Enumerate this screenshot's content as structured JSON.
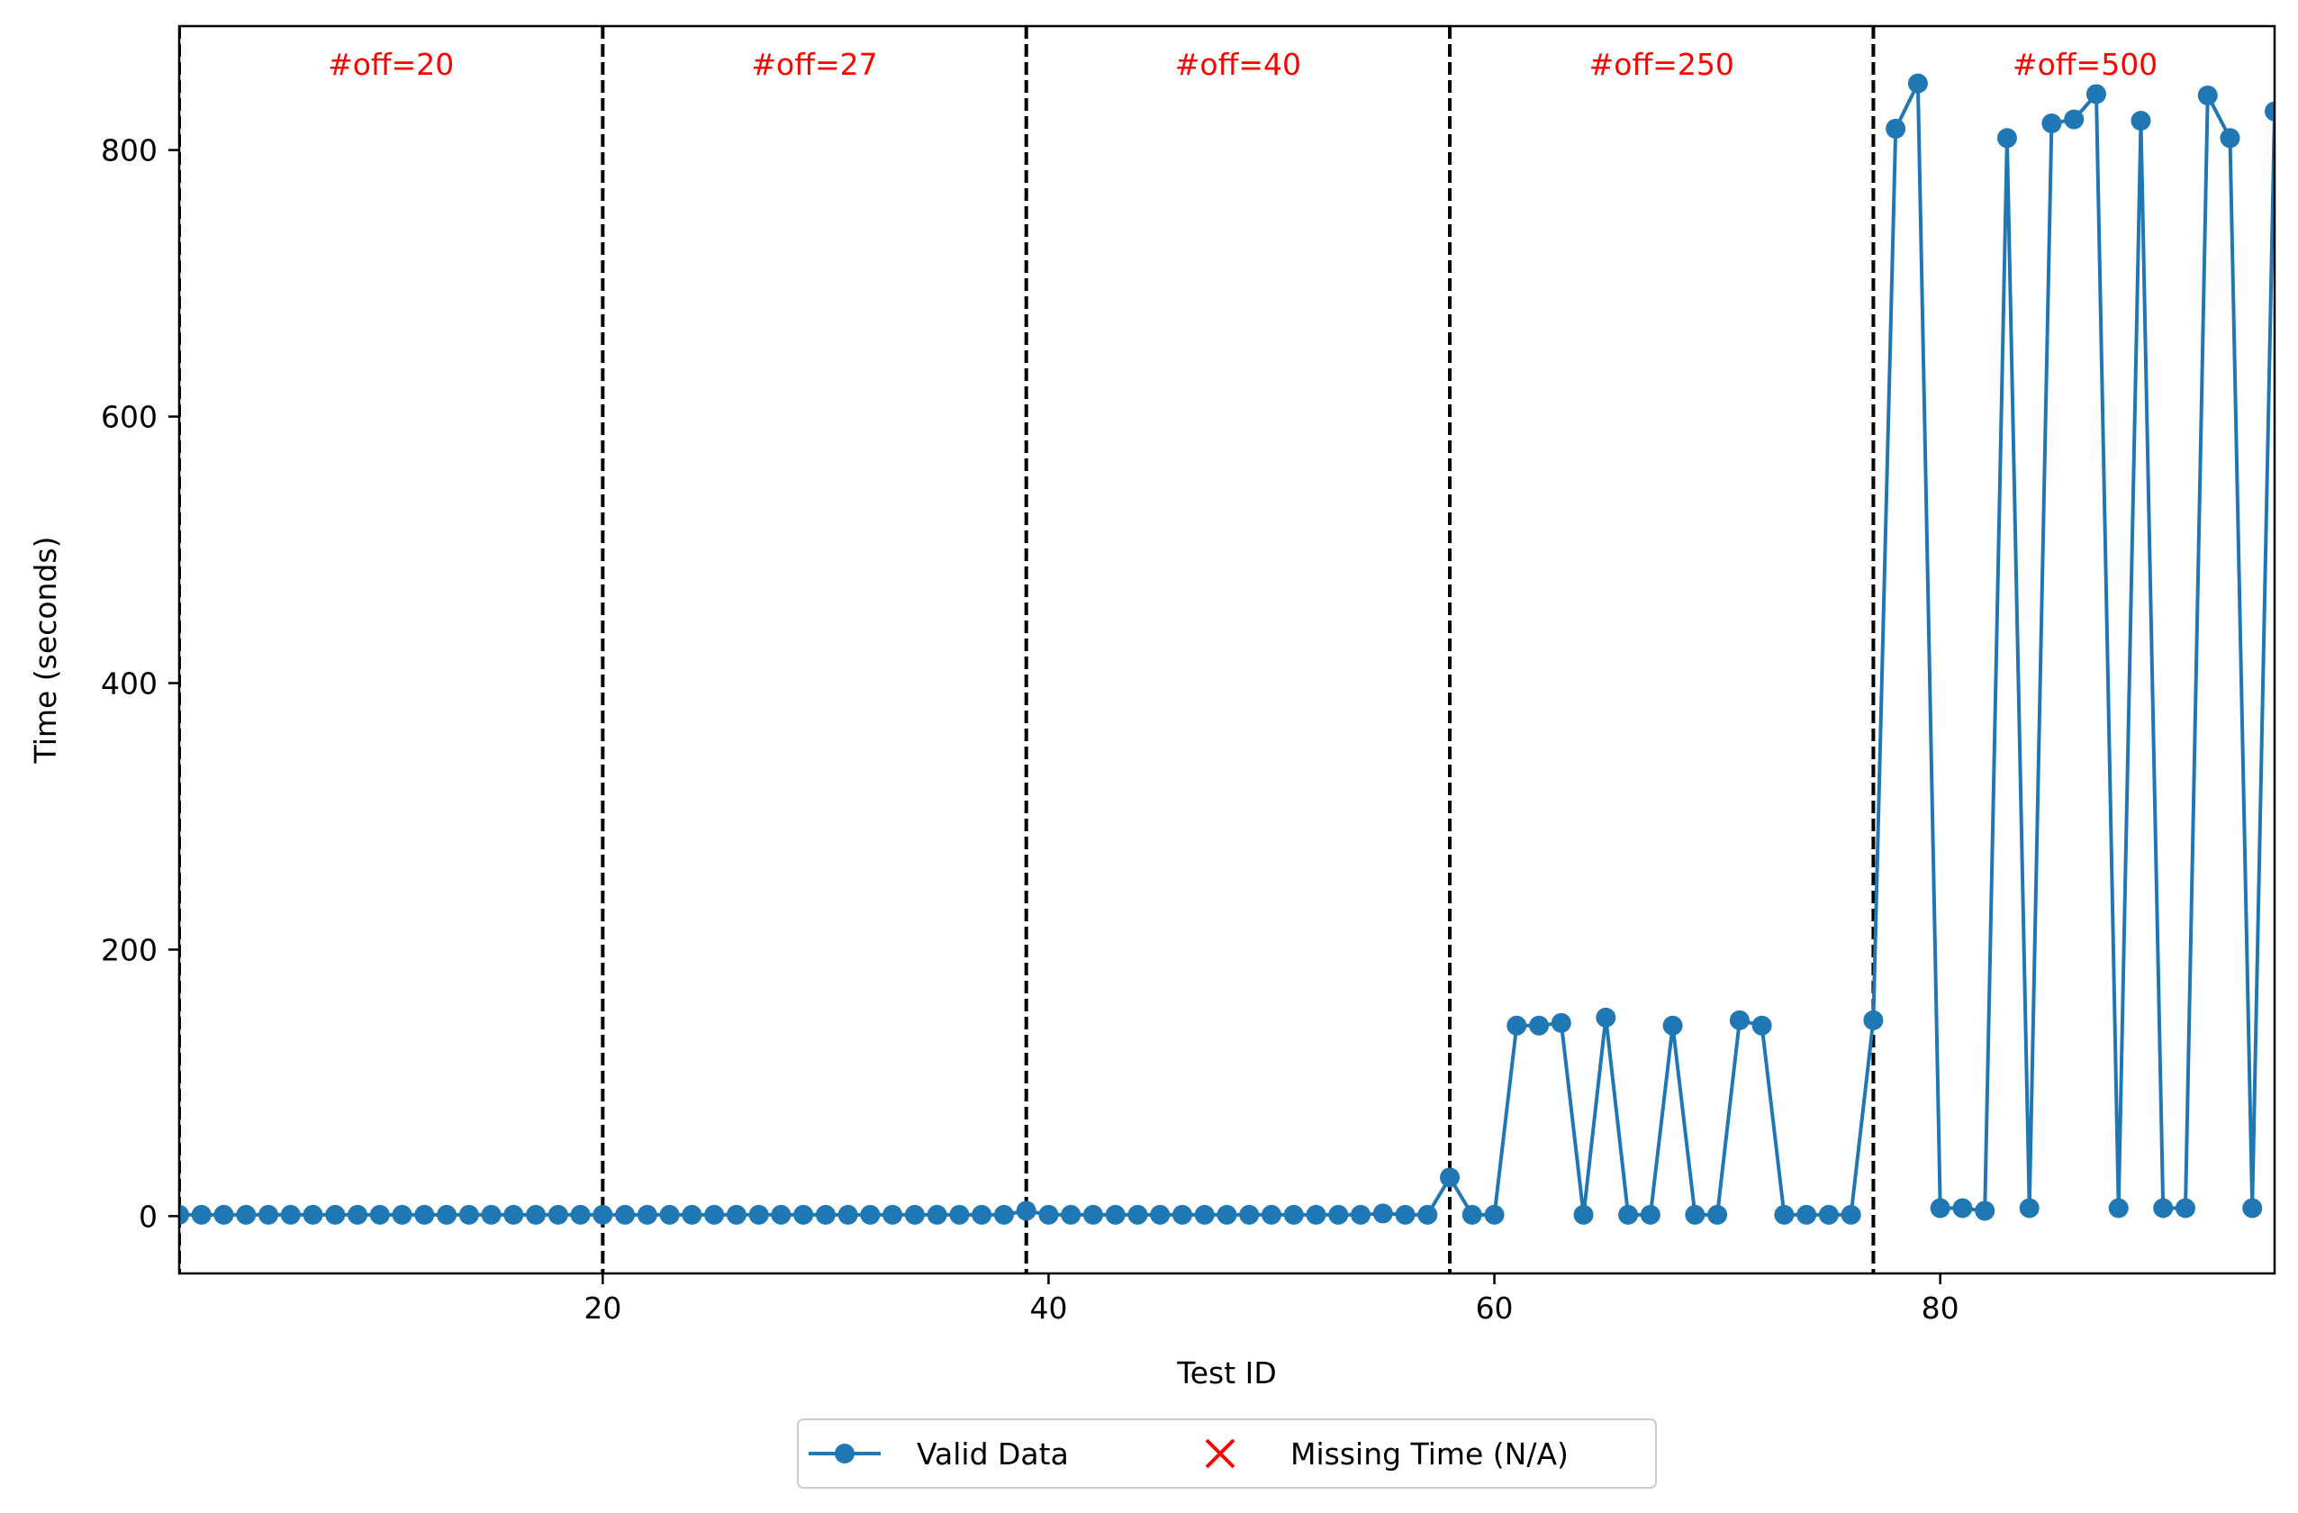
{
  "chart_data": {
    "type": "line",
    "xlabel": "Test ID",
    "ylabel": "Time (seconds)",
    "xlim": [
      1,
      95
    ],
    "ylim": [
      -43,
      893
    ],
    "x_ticks": [
      20,
      40,
      60,
      80
    ],
    "y_ticks": [
      0,
      200,
      400,
      600,
      800
    ],
    "grid": false,
    "legend_placement": "bottom-center, below plot",
    "colors": {
      "valid": "#1f77b4",
      "missing": "#ff0000",
      "dividers": "#000000",
      "region_labels": "#ff0000"
    },
    "dividers_x": [
      1,
      20,
      39,
      58,
      77
    ],
    "regions": [
      {
        "label": "#off=20",
        "x_start": 1,
        "x_end": 20
      },
      {
        "label": "#off=27",
        "x_start": 20,
        "x_end": 39
      },
      {
        "label": "#off=40",
        "x_start": 39,
        "x_end": 58
      },
      {
        "label": "#off=250",
        "x_start": 58,
        "x_end": 77
      },
      {
        "label": "#off=500",
        "x_start": 77,
        "x_end": 96
      }
    ],
    "series": [
      {
        "name": "Valid Data",
        "marker": "circle",
        "x": [
          1,
          2,
          3,
          4,
          5,
          6,
          7,
          8,
          9,
          10,
          11,
          12,
          13,
          14,
          15,
          16,
          17,
          18,
          19,
          20,
          21,
          22,
          23,
          24,
          25,
          26,
          27,
          28,
          29,
          30,
          31,
          32,
          33,
          34,
          35,
          36,
          37,
          38,
          39,
          40,
          41,
          42,
          43,
          44,
          45,
          46,
          47,
          48,
          49,
          50,
          51,
          52,
          53,
          54,
          55,
          56,
          57,
          58,
          59,
          60,
          61,
          62,
          63,
          64,
          65,
          66,
          67,
          68,
          69,
          70,
          71,
          72,
          73,
          74,
          75,
          76,
          77,
          78,
          79,
          80,
          81,
          82,
          83,
          84,
          85,
          86,
          87,
          88,
          89,
          90,
          91,
          92,
          93,
          94,
          95
        ],
        "y": [
          1,
          1,
          1,
          1,
          1,
          1,
          1,
          1,
          1,
          1,
          1,
          1,
          1,
          1,
          1,
          1,
          1,
          1,
          1,
          1,
          1,
          1,
          1,
          1,
          1,
          1,
          1,
          1,
          1,
          1,
          1,
          1,
          1,
          1,
          1,
          1,
          1,
          1,
          4,
          1,
          1,
          1,
          1,
          1,
          1,
          1,
          1,
          1,
          1,
          1,
          1,
          1,
          1,
          1,
          2,
          1,
          1,
          29,
          1,
          1,
          143,
          143,
          145,
          1,
          149,
          1,
          1,
          143,
          1,
          1,
          147,
          143,
          1,
          1,
          1,
          1,
          147,
          816,
          850,
          6,
          6,
          4,
          809,
          6,
          820,
          823,
          842,
          6,
          822,
          6,
          6,
          841,
          809,
          6,
          829
        ]
      },
      {
        "name": "Missing Time (N/A)",
        "marker": "x",
        "x": [],
        "y": []
      }
    ]
  }
}
